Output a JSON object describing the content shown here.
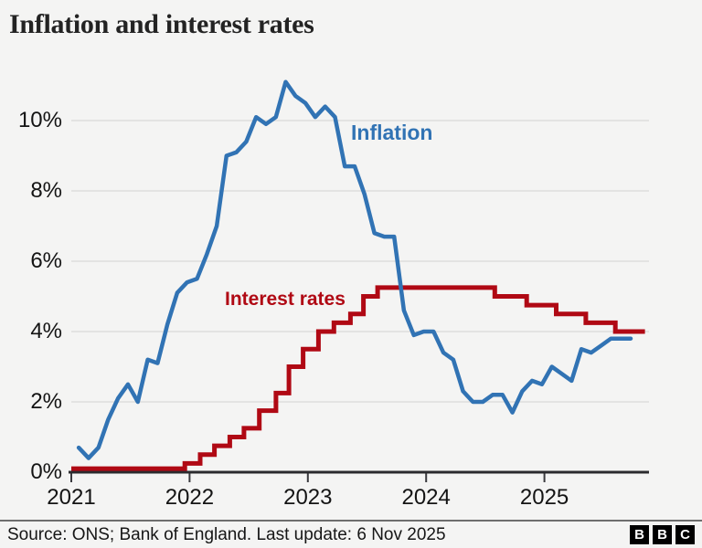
{
  "header": {
    "title": "Inflation and interest rates"
  },
  "chart_data": {
    "type": "line",
    "title": "Inflation and interest rates",
    "xlabel": "",
    "ylabel": "",
    "x_tick_labels": [
      "2021",
      "2022",
      "2023",
      "2024",
      "2025"
    ],
    "y_tick_labels": [
      "0%",
      "2%",
      "4%",
      "6%",
      "8%",
      "10%"
    ],
    "y_tick_values": [
      0,
      2,
      4,
      6,
      8,
      10
    ],
    "ylim": [
      0,
      11.5
    ],
    "x_range_years": [
      2021.0,
      2025.9
    ],
    "grid": "horizontal-light",
    "legend_position": "inline-annotations",
    "series": [
      {
        "name": "Inflation",
        "color": "#3173b4",
        "unit": "percent",
        "cadence": "monthly",
        "start": "Jan 2021",
        "end": "Sep 2025",
        "values": [
          0.7,
          0.4,
          0.7,
          1.5,
          2.1,
          2.5,
          2.0,
          3.2,
          3.1,
          4.2,
          5.1,
          5.4,
          5.5,
          6.2,
          7.0,
          9.0,
          9.1,
          9.4,
          10.1,
          9.9,
          10.1,
          11.1,
          10.7,
          10.5,
          10.1,
          10.4,
          10.1,
          8.7,
          8.7,
          7.9,
          6.8,
          6.7,
          6.7,
          4.6,
          3.9,
          4.0,
          4.0,
          3.4,
          3.2,
          2.3,
          2.0,
          2.0,
          2.2,
          2.2,
          1.7,
          2.3,
          2.6,
          2.5,
          3.0,
          2.8,
          2.6,
          3.5,
          3.4,
          3.6,
          3.8,
          3.8,
          3.8
        ]
      },
      {
        "name": "Interest rates",
        "color": "#b00914",
        "unit": "percent",
        "style": "step",
        "points": [
          [
            2021.0,
            0.1
          ],
          [
            2021.96,
            0.25
          ],
          [
            2022.09,
            0.5
          ],
          [
            2022.21,
            0.75
          ],
          [
            2022.34,
            1.0
          ],
          [
            2022.46,
            1.25
          ],
          [
            2022.59,
            1.75
          ],
          [
            2022.73,
            2.25
          ],
          [
            2022.84,
            3.0
          ],
          [
            2022.96,
            3.5
          ],
          [
            2023.09,
            4.0
          ],
          [
            2023.22,
            4.25
          ],
          [
            2023.36,
            4.5
          ],
          [
            2023.47,
            5.0
          ],
          [
            2023.59,
            5.25
          ],
          [
            2024.58,
            5.0
          ],
          [
            2024.85,
            4.75
          ],
          [
            2025.1,
            4.5
          ],
          [
            2025.35,
            4.25
          ],
          [
            2025.6,
            4.0
          ]
        ],
        "end_year": 2025.85
      }
    ],
    "annotations": [
      {
        "text": "Inflation",
        "color": "#3173b4"
      },
      {
        "text": "Interest rates",
        "color": "#b00914"
      }
    ]
  },
  "footer": {
    "source": "Source: ONS; Bank of England. Last update: 6 Nov 2025",
    "logo_letters": [
      "B",
      "B",
      "C"
    ]
  },
  "colors": {
    "background": "#f4f4f3",
    "inflation_blue": "#3173b4",
    "rates_red": "#b00914",
    "axis": "#2b2b2e",
    "grid": "#dddddc",
    "text": "#141414"
  }
}
